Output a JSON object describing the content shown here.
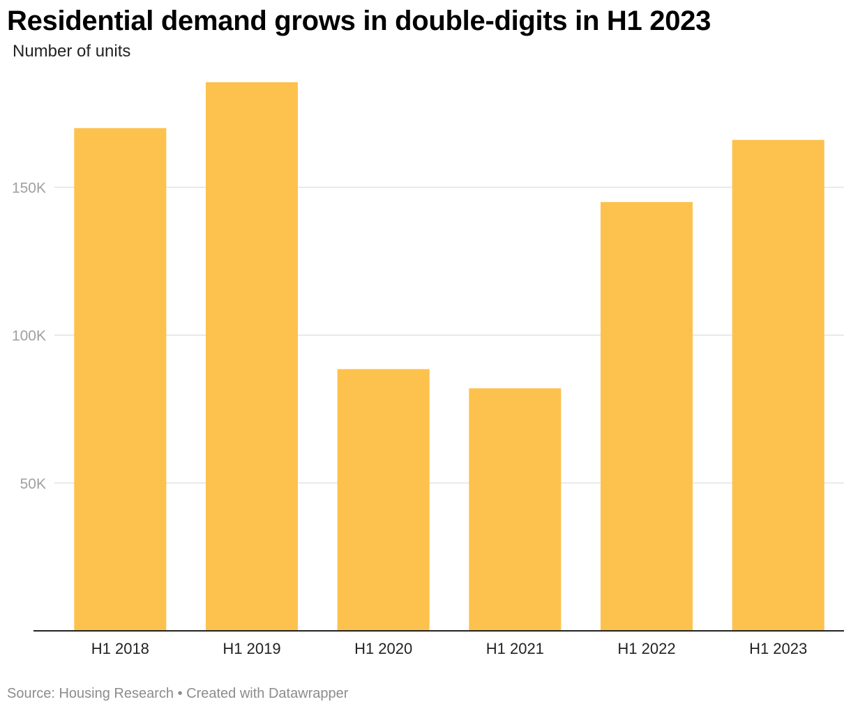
{
  "chart_data": {
    "type": "bar",
    "title": "Residential demand grows in double-digits in H1 2023",
    "subtitle": "Number of units",
    "categories": [
      "H1 2018",
      "H1 2019",
      "H1 2020",
      "H1 2021",
      "H1 2022",
      "H1 2023"
    ],
    "values": [
      170000,
      185500,
      88500,
      82000,
      145000,
      166000
    ],
    "ylim": [
      0,
      185500
    ],
    "yticks": [
      50000,
      100000,
      150000
    ],
    "ytick_labels": [
      "50K",
      "100K",
      "150K"
    ],
    "xlabel": "",
    "ylabel": "",
    "grid": true,
    "bar_color": "#FDC24D",
    "source": "Source: Housing Research • Created with Datawrapper"
  }
}
